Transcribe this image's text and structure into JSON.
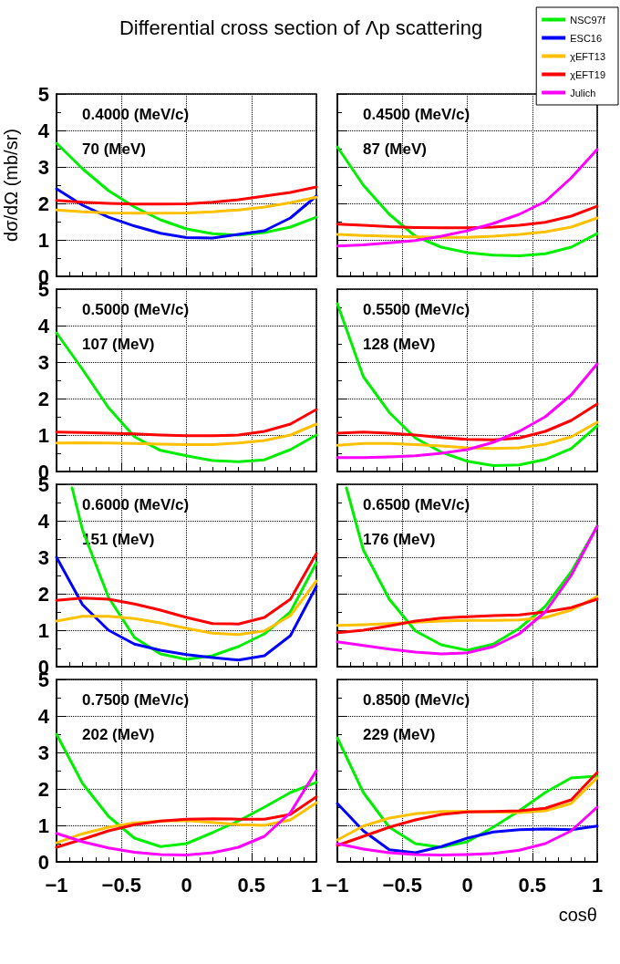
{
  "chart_data": [
    {
      "type": "line",
      "title": "Differential cross section of Λp scattering",
      "ylabel": "dσ/dΩ (mb/sr)",
      "annotations": [
        "0.4000 (MeV/c)",
        "70 (MeV)"
      ],
      "x": [
        -1,
        -0.8,
        -0.6,
        -0.4,
        -0.2,
        0,
        0.2,
        0.4,
        0.6,
        0.8,
        1
      ],
      "xlim": [
        -1,
        1
      ],
      "xticks": [
        -1,
        -0.5,
        0,
        0.5,
        1
      ],
      "ylim": [
        0,
        5
      ],
      "yticks": [
        0,
        1,
        2,
        3,
        4,
        5
      ],
      "grid": true,
      "tick_labels": "y",
      "series": [
        {
          "color": "#00ee00",
          "values": [
            3.65,
            2.95,
            2.35,
            1.9,
            1.55,
            1.3,
            1.17,
            1.13,
            1.2,
            1.35,
            1.62
          ]
        },
        {
          "color": "#0000ff",
          "values": [
            2.4,
            1.95,
            1.62,
            1.38,
            1.18,
            1.06,
            1.05,
            1.15,
            1.25,
            1.6,
            2.2
          ]
        },
        {
          "color": "#ffc000",
          "values": [
            1.82,
            1.77,
            1.74,
            1.73,
            1.73,
            1.74,
            1.77,
            1.82,
            1.9,
            2.02,
            2.17
          ]
        },
        {
          "color": "#ff0000",
          "values": [
            2.08,
            2.03,
            2.0,
            1.98,
            1.98,
            1.99,
            2.03,
            2.1,
            2.2,
            2.3,
            2.45
          ]
        }
      ]
    },
    {
      "type": "line",
      "annotations": [
        "0.4500 (MeV/c)",
        "87 (MeV)"
      ],
      "x": [
        -1,
        -0.8,
        -0.6,
        -0.4,
        -0.2,
        0,
        0.2,
        0.4,
        0.6,
        0.8,
        1
      ],
      "xlim": [
        -1,
        1
      ],
      "xticks": [
        -1,
        -0.5,
        0,
        0.5,
        1
      ],
      "ylim": [
        0,
        5
      ],
      "yticks": [
        0,
        1,
        2,
        3,
        4,
        5
      ],
      "grid": true,
      "tick_labels": false,
      "series": [
        {
          "color": "#00ee00",
          "values": [
            3.55,
            2.5,
            1.7,
            1.1,
            0.8,
            0.65,
            0.58,
            0.56,
            0.62,
            0.8,
            1.17
          ]
        },
        {
          "color": "#ffc000",
          "values": [
            1.15,
            1.12,
            1.1,
            1.08,
            1.07,
            1.07,
            1.1,
            1.15,
            1.22,
            1.35,
            1.6
          ]
        },
        {
          "color": "#ff0000",
          "values": [
            1.43,
            1.4,
            1.36,
            1.34,
            1.33,
            1.33,
            1.35,
            1.4,
            1.48,
            1.65,
            1.92
          ]
        },
        {
          "color": "#ff00ff",
          "values": [
            0.83,
            0.86,
            0.92,
            0.98,
            1.1,
            1.25,
            1.45,
            1.7,
            2.05,
            2.7,
            3.48
          ]
        }
      ]
    },
    {
      "type": "line",
      "annotations": [
        "0.5000 (MeV/c)",
        "107 (MeV)"
      ],
      "x": [
        -1,
        -0.8,
        -0.6,
        -0.4,
        -0.2,
        0,
        0.2,
        0.4,
        0.6,
        0.8,
        1
      ],
      "xlim": [
        -1,
        1
      ],
      "xticks": [
        -1,
        -0.5,
        0,
        0.5,
        1
      ],
      "ylim": [
        0,
        5
      ],
      "yticks": [
        0,
        1,
        2,
        3,
        4,
        5
      ],
      "grid": true,
      "tick_labels": "y",
      "series": [
        {
          "color": "#00ee00",
          "values": [
            3.8,
            2.8,
            1.75,
            0.95,
            0.58,
            0.43,
            0.3,
            0.27,
            0.32,
            0.6,
            1.0
          ]
        },
        {
          "color": "#ffc000",
          "values": [
            0.78,
            0.79,
            0.78,
            0.77,
            0.75,
            0.74,
            0.74,
            0.78,
            0.85,
            1.0,
            1.3
          ]
        },
        {
          "color": "#ff0000",
          "values": [
            1.08,
            1.07,
            1.05,
            1.03,
            1.0,
            0.98,
            0.98,
            1.0,
            1.1,
            1.3,
            1.7
          ]
        }
      ]
    },
    {
      "type": "line",
      "annotations": [
        "0.5500 (MeV/c)",
        "128 (MeV)"
      ],
      "x": [
        -1,
        -0.8,
        -0.6,
        -0.4,
        -0.2,
        0,
        0.2,
        0.4,
        0.6,
        0.8,
        1
      ],
      "xlim": [
        -1,
        1
      ],
      "xticks": [
        -1,
        -0.5,
        0,
        0.5,
        1
      ],
      "ylim": [
        0,
        5
      ],
      "yticks": [
        0,
        1,
        2,
        3,
        4,
        5
      ],
      "grid": true,
      "tick_labels": false,
      "series": [
        {
          "color": "#00ee00",
          "values": [
            4.6,
            2.6,
            1.62,
            0.92,
            0.53,
            0.28,
            0.16,
            0.18,
            0.33,
            0.63,
            1.25
          ]
        },
        {
          "color": "#ffc000",
          "values": [
            0.72,
            0.77,
            0.77,
            0.74,
            0.7,
            0.65,
            0.63,
            0.65,
            0.75,
            0.95,
            1.35
          ]
        },
        {
          "color": "#ff0000",
          "values": [
            1.05,
            1.08,
            1.05,
            1.0,
            0.93,
            0.88,
            0.87,
            0.92,
            1.1,
            1.4,
            1.85
          ]
        },
        {
          "color": "#ff00ff",
          "values": [
            0.38,
            0.38,
            0.4,
            0.43,
            0.5,
            0.6,
            0.8,
            1.1,
            1.5,
            2.1,
            2.95
          ]
        }
      ]
    },
    {
      "type": "line",
      "annotations": [
        "0.6000 (MeV/c)",
        "151 (MeV)"
      ],
      "x": [
        -1,
        -0.8,
        -0.6,
        -0.4,
        -0.2,
        0,
        0.2,
        0.4,
        0.6,
        0.8,
        1
      ],
      "xlim": [
        -1,
        1
      ],
      "xticks": [
        -1,
        -0.5,
        0,
        0.5,
        1
      ],
      "ylim": [
        0,
        5
      ],
      "yticks": [
        0,
        1,
        2,
        3,
        4,
        5
      ],
      "grid": true,
      "tick_labels": "y",
      "series": [
        {
          "color": "#00ee00",
          "x": [
            -0.88,
            -0.8,
            -0.6,
            -0.4,
            -0.2,
            0,
            0.2,
            0.4,
            0.6,
            0.8,
            1
          ],
          "values": [
            4.9,
            3.75,
            1.9,
            0.8,
            0.35,
            0.2,
            0.3,
            0.55,
            0.9,
            1.5,
            2.85
          ]
        },
        {
          "color": "#0000ff",
          "values": [
            3.0,
            1.7,
            1.0,
            0.62,
            0.45,
            0.33,
            0.25,
            0.18,
            0.3,
            0.85,
            2.2
          ]
        },
        {
          "color": "#ffc000",
          "values": [
            1.25,
            1.38,
            1.38,
            1.32,
            1.2,
            1.05,
            0.92,
            0.88,
            0.98,
            1.4,
            2.35
          ]
        },
        {
          "color": "#ff0000",
          "values": [
            1.82,
            1.88,
            1.85,
            1.72,
            1.55,
            1.35,
            1.18,
            1.17,
            1.35,
            1.85,
            3.1
          ]
        }
      ]
    },
    {
      "type": "line",
      "annotations": [
        "0.6500 (MeV/c)",
        "176 (MeV)"
      ],
      "x": [
        -1,
        -0.8,
        -0.6,
        -0.4,
        -0.2,
        0,
        0.2,
        0.4,
        0.6,
        0.8,
        1
      ],
      "xlim": [
        -1,
        1
      ],
      "xticks": [
        -1,
        -0.5,
        0,
        0.5,
        1
      ],
      "ylim": [
        0,
        5
      ],
      "yticks": [
        0,
        1,
        2,
        3,
        4,
        5
      ],
      "grid": true,
      "tick_labels": false,
      "series": [
        {
          "color": "#00ee00",
          "x": [
            -0.93,
            -0.8,
            -0.6,
            -0.4,
            -0.2,
            0,
            0.2,
            0.4,
            0.6,
            0.8,
            1
          ],
          "values": [
            4.9,
            3.2,
            1.85,
            0.98,
            0.6,
            0.45,
            0.62,
            1.05,
            1.65,
            2.6,
            3.85
          ]
        },
        {
          "color": "#ffc000",
          "values": [
            1.13,
            1.15,
            1.18,
            1.22,
            1.25,
            1.27,
            1.27,
            1.28,
            1.35,
            1.55,
            1.92
          ]
        },
        {
          "color": "#ff0000",
          "values": [
            0.93,
            1.0,
            1.12,
            1.25,
            1.33,
            1.37,
            1.4,
            1.42,
            1.5,
            1.62,
            1.85
          ]
        },
        {
          "color": "#ff00ff",
          "values": [
            0.68,
            0.58,
            0.48,
            0.4,
            0.35,
            0.38,
            0.55,
            0.9,
            1.5,
            2.5,
            3.85
          ]
        }
      ]
    },
    {
      "type": "line",
      "annotations": [
        "0.7500 (MeV/c)",
        "202 (MeV)"
      ],
      "x": [
        -1,
        -0.8,
        -0.6,
        -0.4,
        -0.2,
        0,
        0.2,
        0.4,
        0.6,
        0.8,
        1
      ],
      "xlim": [
        -1,
        1
      ],
      "xticks": [
        -1,
        -0.5,
        0,
        0.5,
        1
      ],
      "ylim": [
        0,
        5
      ],
      "yticks": [
        0,
        1,
        2,
        3,
        4,
        5
      ],
      "grid": true,
      "series": [
        {
          "color": "#00ee00",
          "values": [
            3.5,
            2.15,
            1.25,
            0.65,
            0.42,
            0.5,
            0.8,
            1.12,
            1.5,
            1.9,
            2.18
          ]
        },
        {
          "color": "#ffc000",
          "values": [
            0.52,
            0.77,
            0.95,
            1.07,
            1.12,
            1.13,
            1.08,
            1.02,
            1.0,
            1.15,
            1.62
          ]
        },
        {
          "color": "#ff0000",
          "values": [
            0.4,
            0.62,
            0.85,
            1.02,
            1.12,
            1.17,
            1.18,
            1.17,
            1.17,
            1.3,
            1.78
          ]
        },
        {
          "color": "#ff00ff",
          "values": [
            0.78,
            0.55,
            0.38,
            0.26,
            0.2,
            0.19,
            0.25,
            0.4,
            0.7,
            1.35,
            2.5
          ]
        }
      ]
    },
    {
      "type": "line",
      "xlabel": "cosθ",
      "annotations": [
        "0.8500 (MeV/c)",
        "229 (MeV)"
      ],
      "x": [
        -1,
        -0.8,
        -0.6,
        -0.4,
        -0.2,
        0,
        0.2,
        0.4,
        0.6,
        0.8,
        1
      ],
      "xlim": [
        -1,
        1
      ],
      "xticks": [
        -1,
        -0.5,
        0,
        0.5,
        1
      ],
      "ylim": [
        0,
        5
      ],
      "yticks": [
        0,
        1,
        2,
        3,
        4,
        5
      ],
      "grid": true,
      "tick_labels": "x",
      "legend": "top right",
      "series": [
        {
          "name": "NSC97f",
          "color": "#00ee00",
          "values": [
            3.4,
            1.9,
            0.95,
            0.5,
            0.4,
            0.55,
            0.95,
            1.4,
            1.9,
            2.3,
            2.35
          ]
        },
        {
          "name": "ESC16",
          "color": "#0000ff",
          "values": [
            1.6,
            0.85,
            0.33,
            0.25,
            0.42,
            0.65,
            0.82,
            0.88,
            0.9,
            0.88,
            0.98
          ]
        },
        {
          "name": "χEFT13",
          "color": "#ffc000",
          "values": [
            0.6,
            0.98,
            1.2,
            1.32,
            1.38,
            1.38,
            1.37,
            1.35,
            1.4,
            1.6,
            2.3
          ]
        },
        {
          "name": "χEFT19",
          "color": "#ff0000",
          "values": [
            0.45,
            0.7,
            0.95,
            1.15,
            1.3,
            1.37,
            1.38,
            1.4,
            1.47,
            1.7,
            2.45
          ]
        },
        {
          "name": "Julich",
          "color": "#ff00ff",
          "values": [
            0.5,
            0.35,
            0.25,
            0.2,
            0.19,
            0.2,
            0.23,
            0.32,
            0.5,
            0.85,
            1.5
          ]
        }
      ]
    }
  ]
}
